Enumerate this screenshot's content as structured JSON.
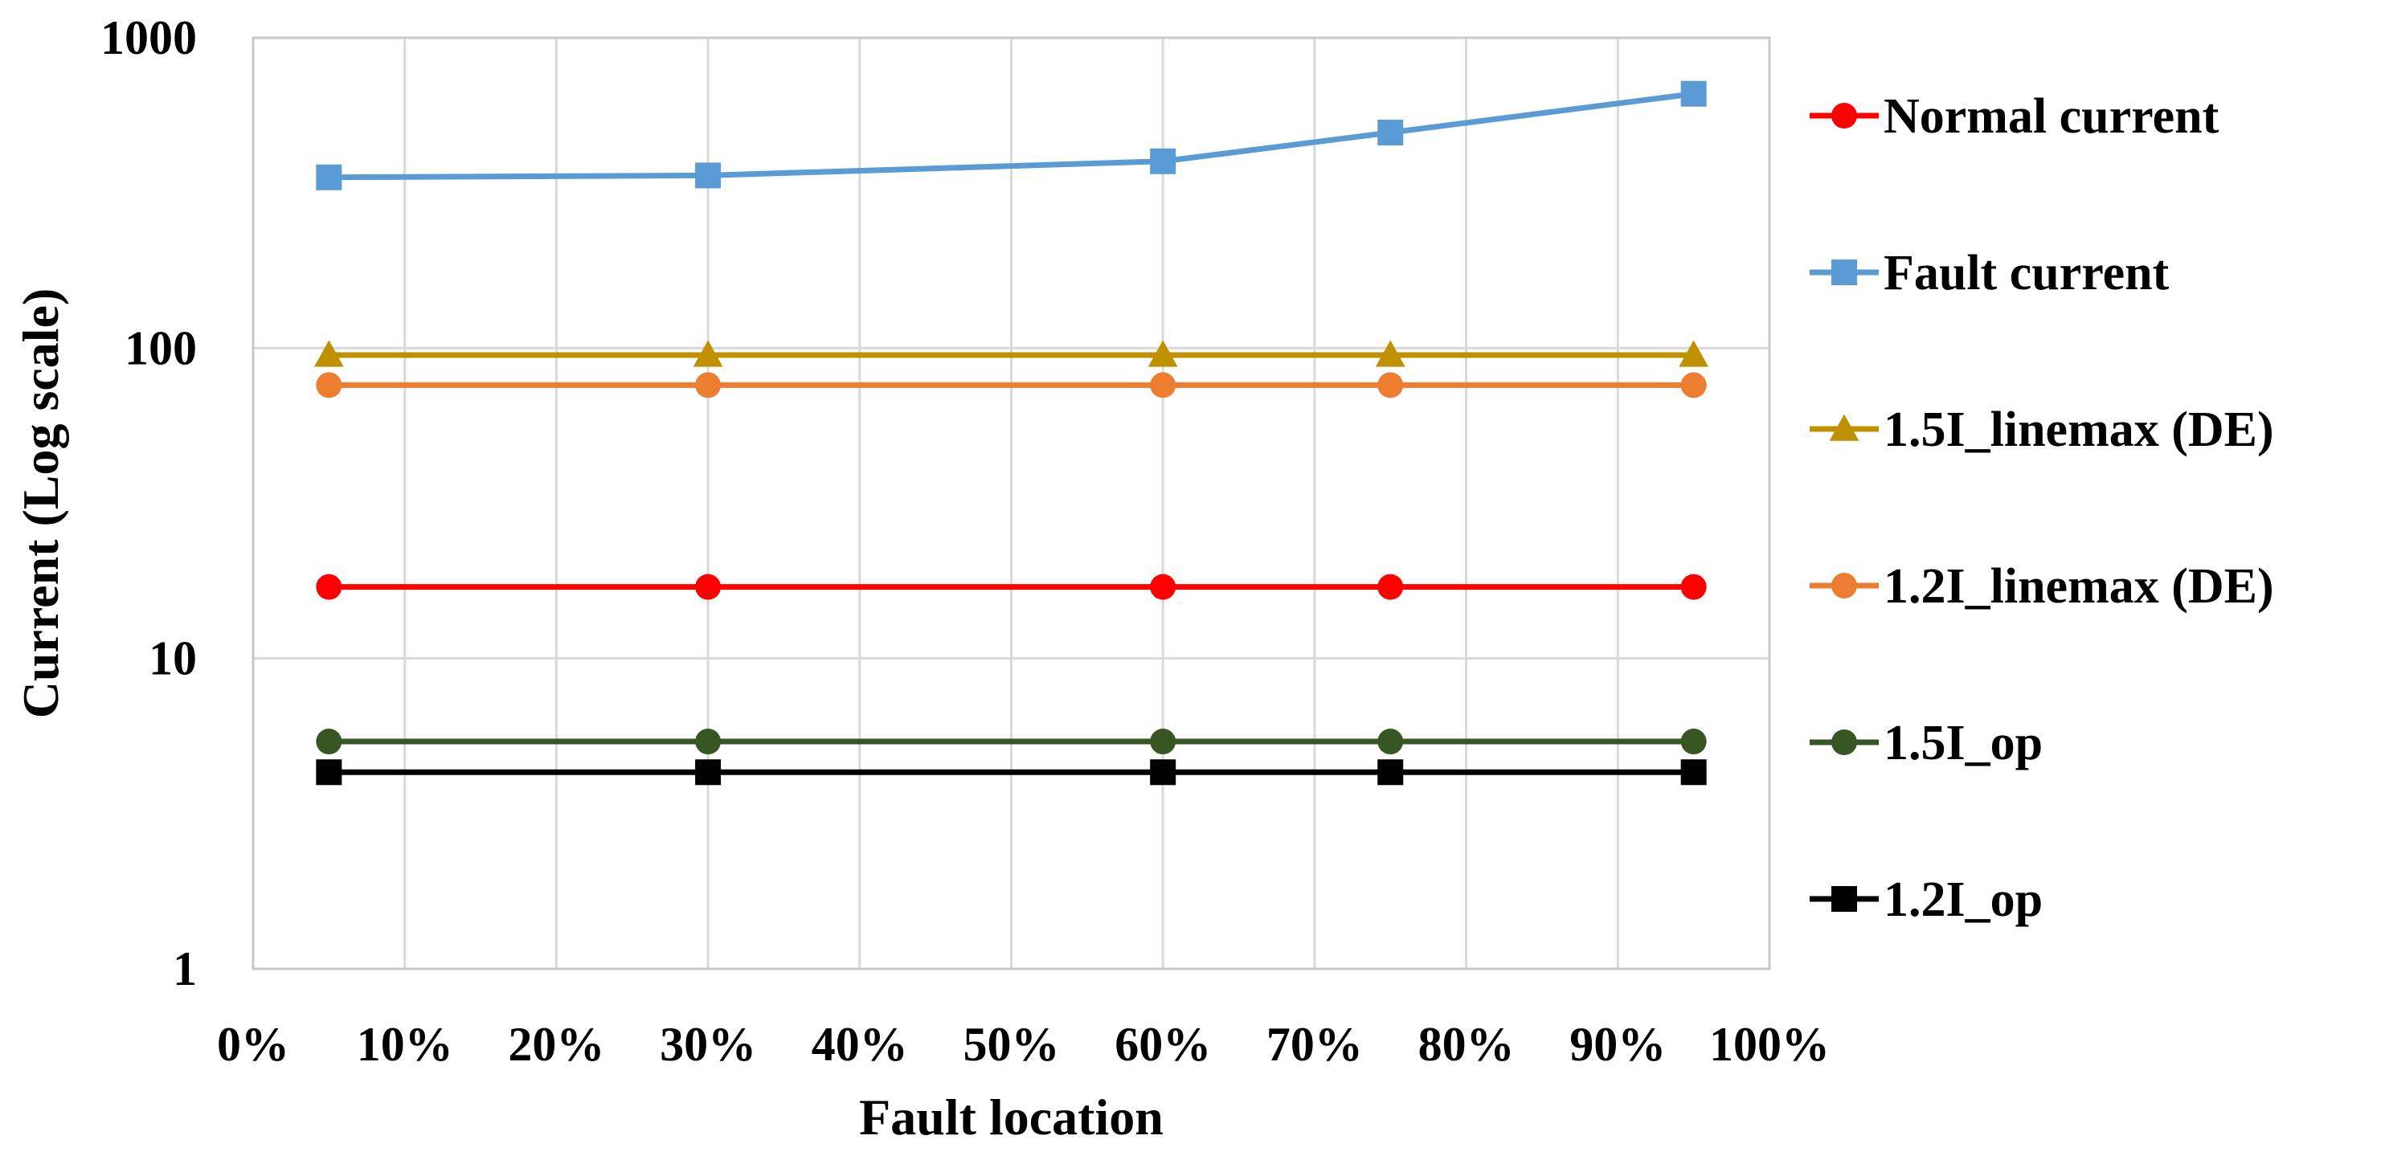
{
  "chart_data": {
    "type": "line",
    "title": "",
    "xlabel": "Fault location",
    "ylabel": "Current (Log scale)",
    "y_scale": "log",
    "ylim": [
      1,
      1000
    ],
    "xlim": [
      0,
      100
    ],
    "grid": true,
    "legend_position": "right",
    "y_ticks": [
      {
        "value": 1,
        "label": "1"
      },
      {
        "value": 10,
        "label": "10"
      },
      {
        "value": 100,
        "label": "100"
      },
      {
        "value": 1000,
        "label": "1000"
      }
    ],
    "x_ticks": [
      {
        "value": 0,
        "label": "0%"
      },
      {
        "value": 10,
        "label": "10%"
      },
      {
        "value": 20,
        "label": "20%"
      },
      {
        "value": 30,
        "label": "30%"
      },
      {
        "value": 40,
        "label": "40%"
      },
      {
        "value": 50,
        "label": "50%"
      },
      {
        "value": 60,
        "label": "60%"
      },
      {
        "value": 70,
        "label": "70%"
      },
      {
        "value": 80,
        "label": "80%"
      },
      {
        "value": 90,
        "label": "90%"
      },
      {
        "value": 100,
        "label": "100%"
      }
    ],
    "x": [
      5,
      30,
      60,
      75,
      95
    ],
    "series": [
      {
        "name": "Normal current",
        "color": "#ff0000",
        "marker": "circle",
        "values": [
          17,
          17,
          17,
          17,
          17
        ]
      },
      {
        "name": "Fault current",
        "color": "#5b9bd5",
        "marker": "square",
        "values": [
          355,
          360,
          400,
          495,
          660
        ]
      },
      {
        "name": "1.5I_linemax (DE)",
        "color": "#bf9000",
        "marker": "triangle",
        "values": [
          95,
          95,
          95,
          95,
          95
        ]
      },
      {
        "name": "1.2I_linemax (DE)",
        "color": "#ed7d31",
        "marker": "circle",
        "values": [
          76,
          76,
          76,
          76,
          76
        ]
      },
      {
        "name": "1.5I_op",
        "color": "#375623",
        "marker": "circle",
        "values": [
          5.4,
          5.4,
          5.4,
          5.4,
          5.4
        ]
      },
      {
        "name": "1.2I_op",
        "color": "#000000",
        "marker": "square",
        "values": [
          4.3,
          4.3,
          4.3,
          4.3,
          4.3
        ]
      }
    ]
  }
}
